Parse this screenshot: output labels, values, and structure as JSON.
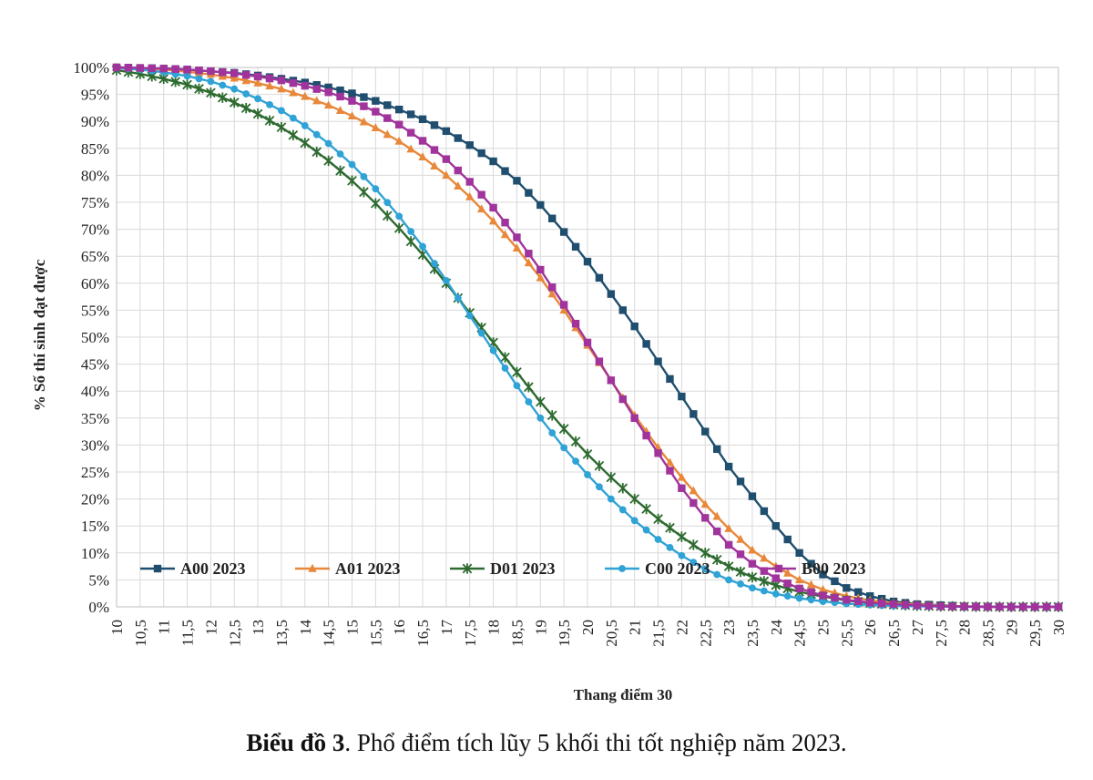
{
  "caption": {
    "label": "Biểu đồ 3",
    "text": ". Phổ điểm tích lũy 5 khối thi tốt nghiệp năm 2023."
  },
  "chart_data": {
    "type": "line",
    "xlabel": "Thang điểm 30",
    "ylabel": "% Số thí sinh đạt được",
    "xlim": [
      10,
      30
    ],
    "ylim": [
      0,
      100
    ],
    "grid": true,
    "legend": "bottom-left",
    "x_ticks": [
      "10",
      "10,5",
      "11",
      "11,5",
      "12",
      "12,5",
      "13",
      "13,5",
      "14",
      "14,5",
      "15",
      "15,5",
      "16",
      "16,5",
      "17",
      "17,5",
      "18",
      "18,5",
      "19",
      "19,5",
      "20",
      "20,5",
      "21",
      "21,5",
      "22",
      "22,5",
      "23",
      "23,5",
      "24",
      "24,5",
      "25",
      "25,5",
      "26",
      "26,5",
      "27",
      "27,5",
      "28",
      "28,5",
      "29",
      "29,5",
      "30"
    ],
    "y_ticks": [
      "0%",
      "5%",
      "10%",
      "15%",
      "20%",
      "25%",
      "30%",
      "35%",
      "40%",
      "45%",
      "50%",
      "55%",
      "60%",
      "65%",
      "70%",
      "75%",
      "80%",
      "85%",
      "90%",
      "95%",
      "100%"
    ],
    "x": [
      10,
      10.5,
      11,
      11.5,
      12,
      12.5,
      13,
      13.5,
      14,
      14.5,
      15,
      15.5,
      16,
      16.5,
      17,
      17.5,
      18,
      18.5,
      19,
      19.5,
      20,
      20.5,
      21,
      21.5,
      22,
      22.5,
      23,
      23.5,
      24,
      24.5,
      25,
      25.5,
      26,
      26.5,
      27,
      27.5,
      28,
      28.5,
      29,
      29.5,
      30
    ],
    "series": [
      {
        "name": "A00 2023",
        "color": "#1f4e6e",
        "marker": "square",
        "values": [
          100,
          99.9,
          99.8,
          99.6,
          99.3,
          99,
          98.5,
          97.9,
          97.2,
          96.3,
          95.2,
          93.8,
          92.2,
          90.4,
          88.2,
          85.6,
          82.6,
          79,
          74.5,
          69.5,
          64,
          58,
          52,
          45.5,
          39,
          32.5,
          26,
          20.5,
          15,
          10,
          6,
          3.5,
          2,
          1,
          0.5,
          0.3,
          0.1,
          0.05,
          0,
          0,
          0
        ]
      },
      {
        "name": "A01 2023",
        "color": "#e8883a",
        "marker": "triangle",
        "values": [
          100,
          99.8,
          99.6,
          99.2,
          98.7,
          98,
          97.1,
          96,
          94.6,
          93,
          91,
          88.8,
          86.3,
          83.4,
          80,
          76,
          71.5,
          66.5,
          61,
          55,
          48.5,
          42,
          35.5,
          29.5,
          24,
          19,
          14.5,
          10.5,
          7.5,
          5,
          3.2,
          2,
          1.2,
          0.7,
          0.4,
          0.2,
          0.1,
          0.05,
          0,
          0,
          0
        ]
      },
      {
        "name": "D01 2023",
        "color": "#2e6b30",
        "marker": "star",
        "values": [
          99.5,
          98.8,
          97.9,
          96.8,
          95.3,
          93.5,
          91.4,
          88.9,
          86,
          82.7,
          79,
          74.8,
          70.2,
          65.3,
          60,
          54.5,
          49,
          43.5,
          38,
          33,
          28.3,
          24,
          20,
          16.3,
          13,
          10,
          7.5,
          5.5,
          4,
          2.8,
          1.9,
          1.2,
          0.7,
          0.4,
          0.2,
          0.1,
          0.05,
          0,
          0,
          0,
          0
        ]
      },
      {
        "name": "C00 2023",
        "color": "#2fa2d6",
        "marker": "circle",
        "values": [
          99.9,
          99.6,
          99.1,
          98.4,
          97.4,
          96,
          94.2,
          92,
          89.2,
          85.9,
          82,
          77.5,
          72.4,
          66.8,
          60.5,
          54,
          47.5,
          41,
          35,
          29.5,
          24.5,
          20,
          16,
          12.5,
          9.5,
          7,
          5,
          3.5,
          2.4,
          1.6,
          1,
          0.6,
          0.35,
          0.2,
          0.1,
          0.05,
          0,
          0,
          0,
          0,
          0
        ]
      },
      {
        "name": "B00 2023",
        "color": "#a0349c",
        "marker": "square",
        "values": [
          100,
          99.9,
          99.8,
          99.6,
          99.3,
          98.9,
          98.3,
          97.6,
          96.6,
          95.4,
          93.8,
          91.8,
          89.4,
          86.4,
          83,
          78.8,
          74,
          68.5,
          62.5,
          56,
          49,
          42,
          35,
          28.5,
          22,
          16.5,
          11.5,
          8,
          5.3,
          3.4,
          2.1,
          1.3,
          0.8,
          0.5,
          0.3,
          0.1,
          0.05,
          0,
          0,
          0,
          0
        ]
      }
    ]
  }
}
